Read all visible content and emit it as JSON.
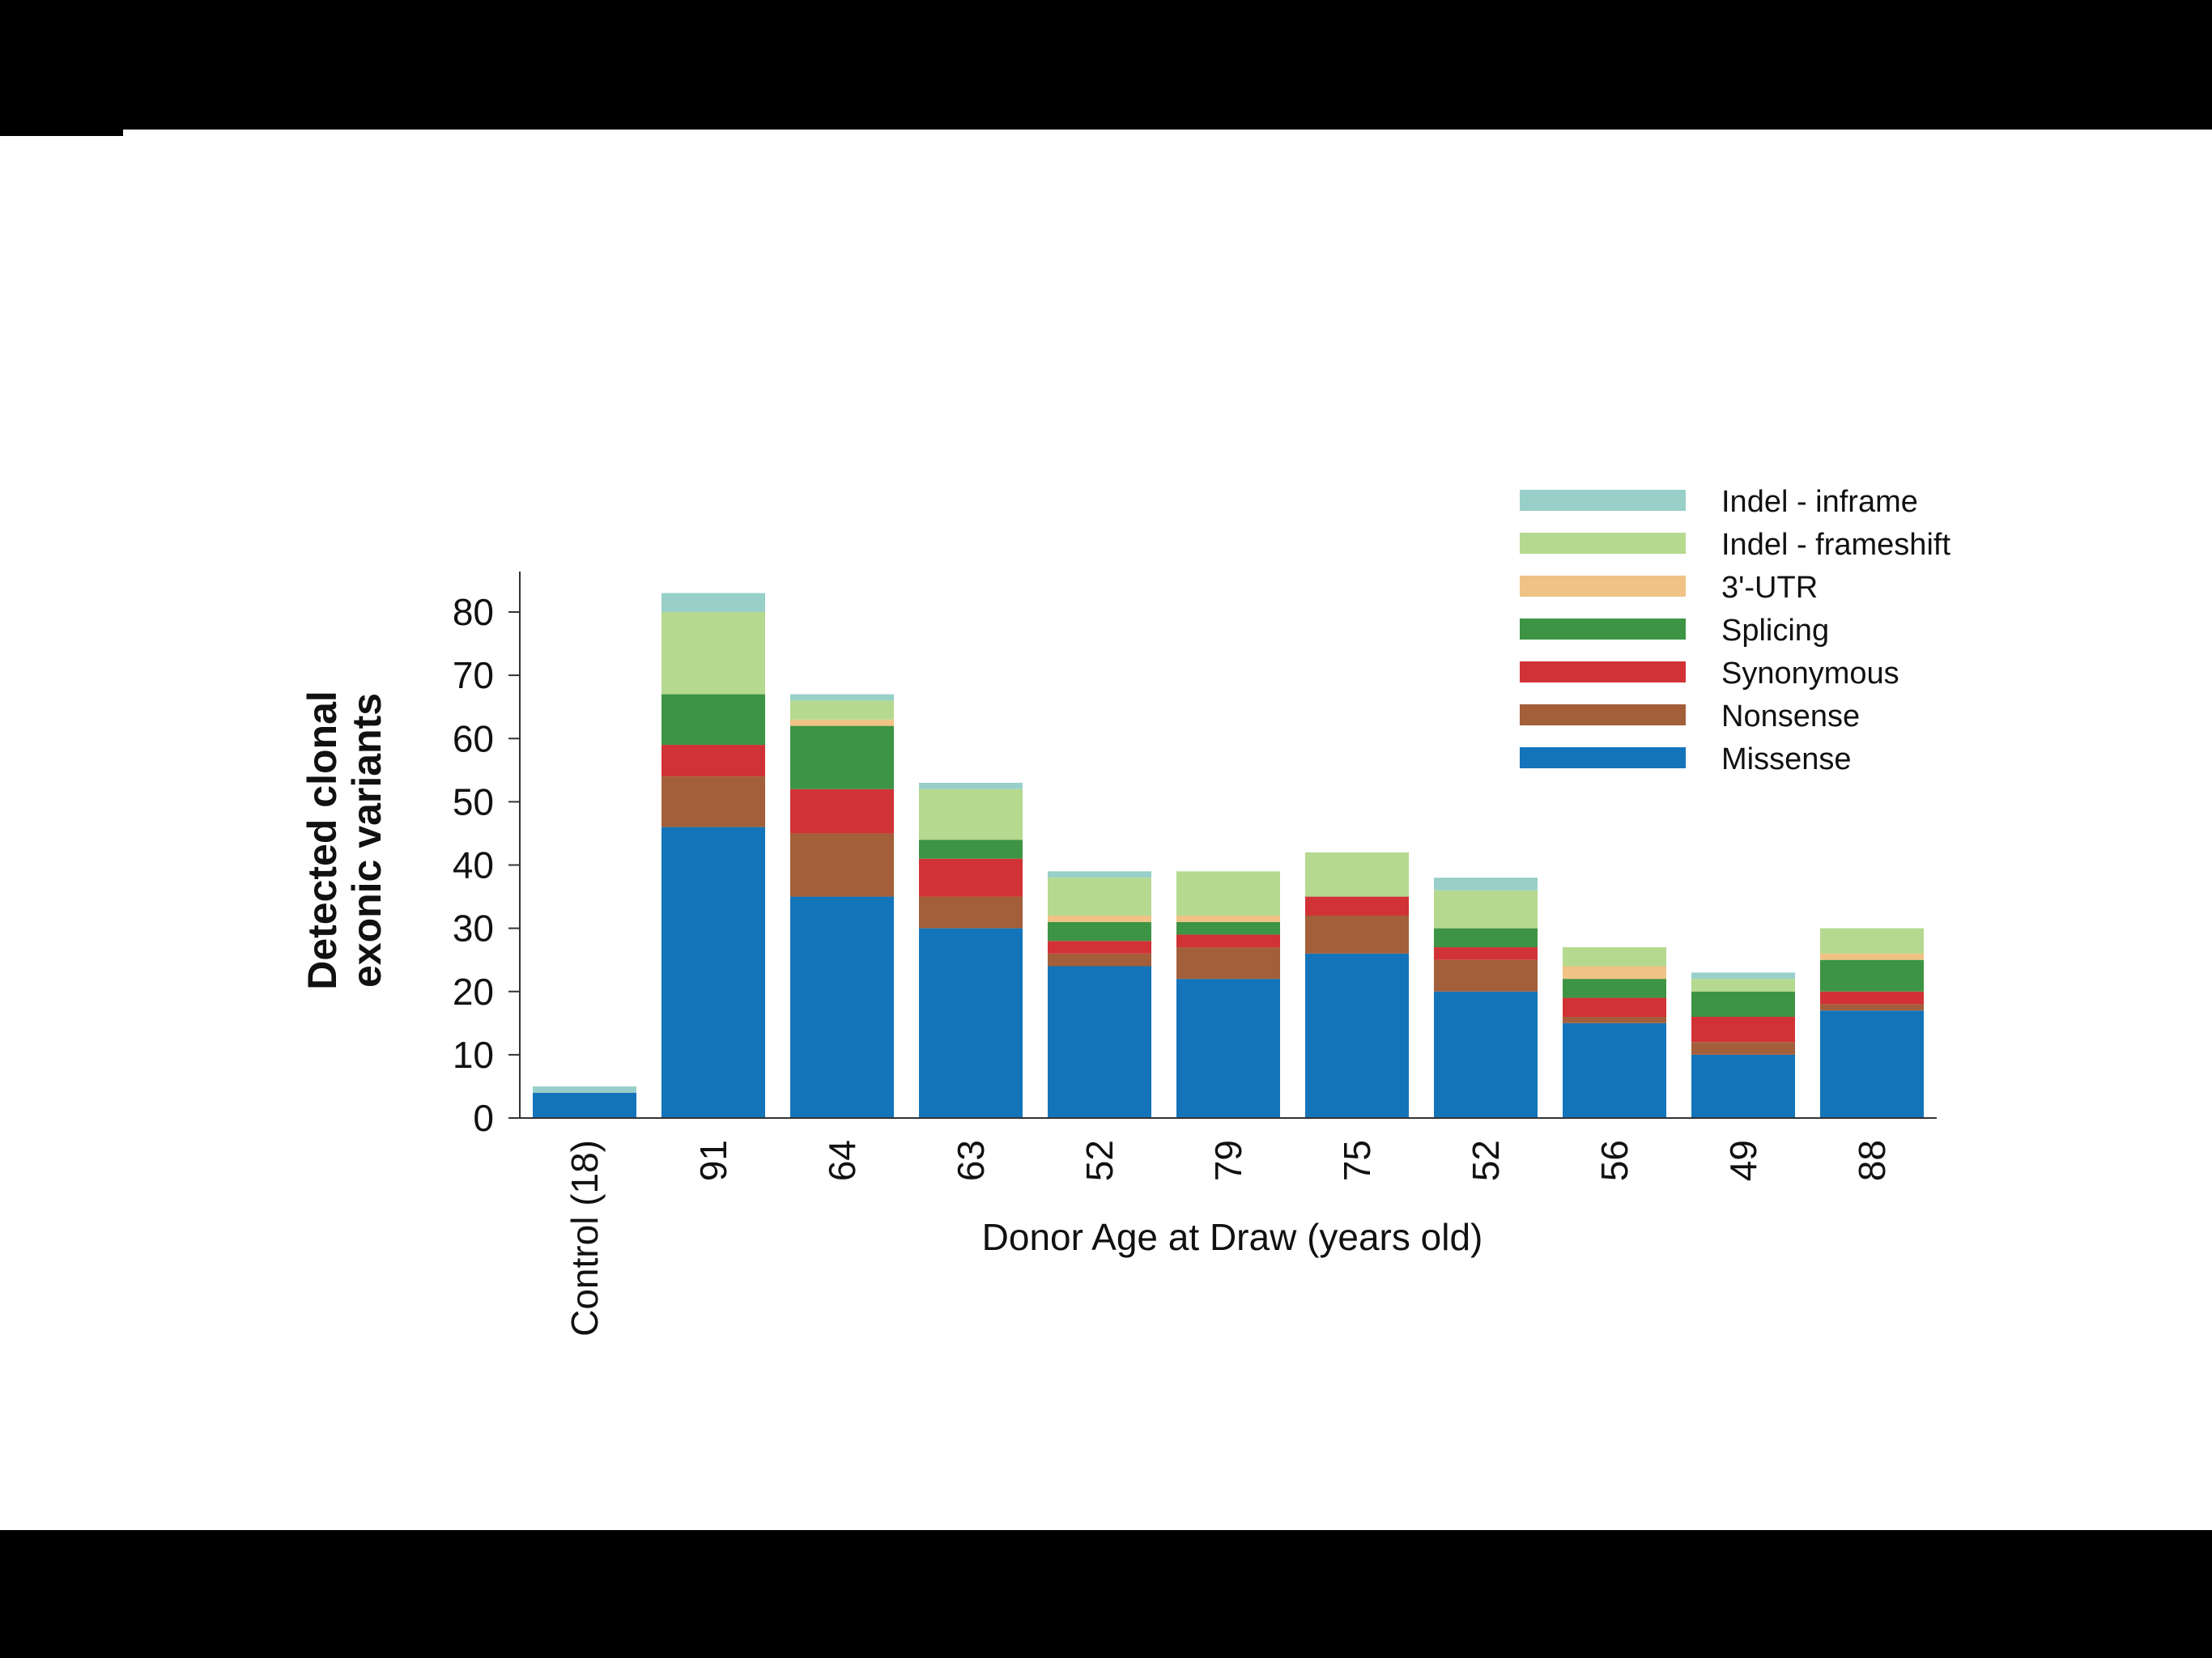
{
  "chart_data": {
    "type": "bar",
    "stacked": true,
    "xlabel": "Donor Age at Draw (years old)",
    "ylabel": [
      "Detected clonal",
      "exonic variants"
    ],
    "ylim": [
      0,
      85
    ],
    "yticks": [
      0,
      10,
      20,
      30,
      40,
      50,
      60,
      70,
      80
    ],
    "grid": false,
    "legend_position": "top-right",
    "categories": [
      "Control (18)",
      "91",
      "64",
      "63",
      "52",
      "79",
      "75",
      "52",
      "56",
      "49",
      "88"
    ],
    "series": [
      {
        "name": "Missense",
        "color": "#1474ba",
        "values": [
          4,
          46,
          35,
          30,
          24,
          22,
          26,
          20,
          15,
          10,
          17
        ]
      },
      {
        "name": "Nonsense",
        "color": "#a35f3a",
        "values": [
          0,
          8,
          10,
          5,
          2,
          5,
          6,
          5,
          1,
          2,
          1
        ]
      },
      {
        "name": "Synonymous",
        "color": "#d13236",
        "values": [
          0,
          5,
          7,
          6,
          2,
          2,
          3,
          2,
          3,
          4,
          2
        ]
      },
      {
        "name": "Splicing",
        "color": "#3d9444",
        "values": [
          0,
          8,
          10,
          3,
          3,
          2,
          0,
          3,
          3,
          4,
          5
        ]
      },
      {
        "name": "3'-UTR",
        "color": "#f0c285",
        "values": [
          0,
          0,
          1,
          0,
          1,
          1,
          0,
          0,
          2,
          0,
          1
        ]
      },
      {
        "name": "Indel - frameshift",
        "color": "#b5d98f",
        "values": [
          0,
          13,
          3,
          8,
          6,
          7,
          7,
          6,
          3,
          2,
          4
        ]
      },
      {
        "name": "Indel - inframe",
        "color": "#98cfc8",
        "values": [
          1,
          3,
          1,
          1,
          1,
          0,
          0,
          2,
          0,
          1,
          0
        ]
      }
    ],
    "legend_order": [
      "Indel - inframe",
      "Indel - frameshift",
      "3'-UTR",
      "Splicing",
      "Synonymous",
      "Nonsense",
      "Missense"
    ]
  }
}
